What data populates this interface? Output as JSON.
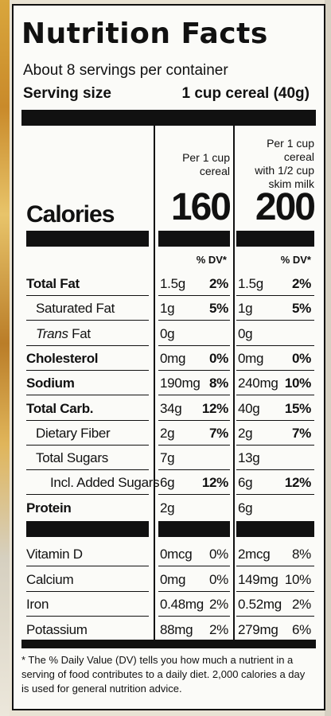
{
  "label": {
    "title": "Nutrition Facts",
    "servings_per_container": "About 8 servings per container",
    "serving_size_label": "Serving size",
    "serving_size_value": "1 cup cereal (40g)",
    "col1_header": [
      "Per 1 cup",
      "cereal"
    ],
    "col2_header": [
      "Per 1 cup cereal",
      "with 1/2 cup",
      "skim milk"
    ],
    "calories_label": "Calories",
    "calories_col1": "160",
    "calories_col2": "200",
    "dv_header": "% DV*",
    "rows": [
      {
        "name": "Total Fat",
        "bold": true,
        "indent": 0,
        "v1": "1.5g",
        "p1": "2%",
        "v2": "1.5g",
        "p2": "2%",
        "pb": true
      },
      {
        "name": "Saturated Fat",
        "bold": false,
        "indent": 1,
        "v1": "1g",
        "p1": "5%",
        "v2": "1g",
        "p2": "5%",
        "pb": true
      },
      {
        "name": "Trans Fat",
        "italic_word": "Trans",
        "bold": false,
        "indent": 1,
        "v1": "0g",
        "p1": "",
        "v2": "0g",
        "p2": "",
        "pb": true
      },
      {
        "name": "Cholesterol",
        "bold": true,
        "indent": 0,
        "v1": "0mg",
        "p1": "0%",
        "v2": "0mg",
        "p2": "0%",
        "pb": true
      },
      {
        "name": "Sodium",
        "bold": true,
        "indent": 0,
        "v1": "190mg",
        "p1": "8%",
        "v2": "240mg",
        "p2": "10%",
        "pb": true
      },
      {
        "name": "Total Carb.",
        "bold": true,
        "indent": 0,
        "v1": "34g",
        "p1": "12%",
        "v2": "40g",
        "p2": "15%",
        "pb": true
      },
      {
        "name": "Dietary Fiber",
        "bold": false,
        "indent": 1,
        "v1": "2g",
        "p1": "7%",
        "v2": "2g",
        "p2": "7%",
        "pb": true
      },
      {
        "name": "Total Sugars",
        "bold": false,
        "indent": 1,
        "v1": "7g",
        "p1": "",
        "v2": "13g",
        "p2": "",
        "pb": true
      },
      {
        "name": "Incl. Added Sugars",
        "bold": false,
        "indent": 2,
        "v1": "6g",
        "p1": "12%",
        "v2": "6g",
        "p2": "12%",
        "pb": true
      },
      {
        "name": "Protein",
        "bold": true,
        "indent": 0,
        "v1": "2g",
        "p1": "",
        "v2": "6g",
        "p2": "",
        "pb": true
      }
    ],
    "vitamins": [
      {
        "name": "Vitamin D",
        "v1": "0mcg",
        "p1": "0%",
        "v2": "2mcg",
        "p2": "8%"
      },
      {
        "name": "Calcium",
        "v1": "0mg",
        "p1": "0%",
        "v2": "149mg",
        "p2": "10%"
      },
      {
        "name": "Iron",
        "v1": "0.48mg",
        "p1": "2%",
        "v2": "0.52mg",
        "p2": "2%"
      },
      {
        "name": "Potassium",
        "v1": "88mg",
        "p1": "2%",
        "v2": "279mg",
        "p2": "6%"
      }
    ],
    "footnote": "* The % Daily Value (DV) tells you how much a nutrient in a serving of food contributes to a daily diet. 2,000 calories a day is used for general nutrition advice."
  }
}
